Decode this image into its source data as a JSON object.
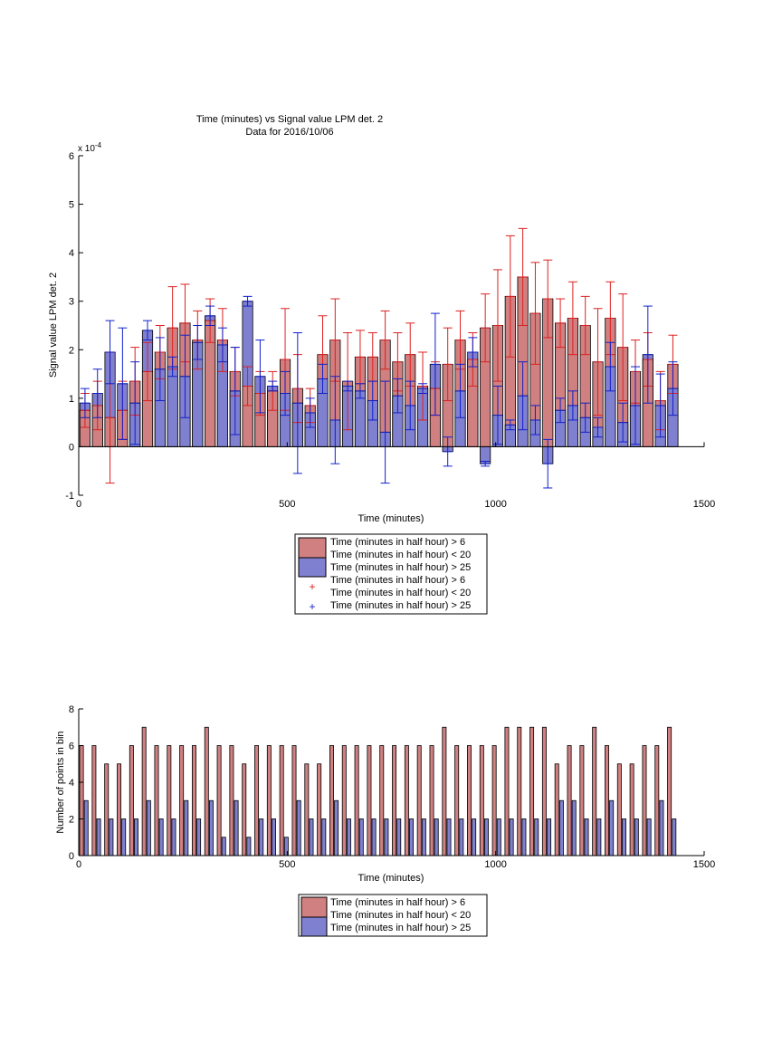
{
  "colors": {
    "red_bar": "#d08080",
    "blue_bar": "#8080d0",
    "red_err": "#dd2020",
    "blue_err": "#1020cc",
    "axis": "#000000"
  },
  "chart_data": [
    {
      "type": "bar",
      "title": "Time (minutes) vs Signal value LPM det. 2",
      "subtitle": "Data for 2016/10/06",
      "xlabel": "Time (minutes)",
      "ylabel": "Signal value LPM det. 2",
      "y_multiplier": "x 10",
      "y_multiplier_exp": "-4",
      "xlim": [
        0,
        1500
      ],
      "ylim": [
        -1,
        6
      ],
      "xticks": [
        0,
        500,
        1000,
        1500
      ],
      "yticks": [
        -1,
        0,
        1,
        2,
        3,
        4,
        5,
        6
      ],
      "x": [
        15,
        45,
        75,
        105,
        135,
        165,
        195,
        225,
        255,
        285,
        315,
        345,
        375,
        405,
        435,
        465,
        495,
        525,
        555,
        585,
        615,
        645,
        675,
        705,
        735,
        765,
        795,
        825,
        855,
        885,
        915,
        945,
        975,
        1005,
        1035,
        1065,
        1095,
        1125,
        1155,
        1185,
        1215,
        1245,
        1275,
        1305,
        1335,
        1365,
        1395,
        1425
      ],
      "series": [
        {
          "name": "Time (minutes in half hour) > 6",
          "name_line2": "Time (minutes in half hour) < 20",
          "values": [
            0.75,
            0.85,
            0.6,
            0.75,
            1.35,
            1.55,
            1.95,
            2.45,
            2.55,
            2.2,
            2.6,
            2.2,
            1.55,
            1.25,
            1.1,
            1.15,
            1.8,
            1.2,
            0.85,
            1.9,
            2.2,
            1.35,
            1.85,
            1.85,
            2.2,
            1.75,
            1.9,
            1.25,
            1.2,
            1.7,
            2.2,
            1.8,
            2.45,
            2.5,
            3.1,
            3.5,
            2.75,
            3.05,
            2.55,
            2.65,
            2.5,
            1.75,
            2.65,
            2.05,
            1.55,
            1.8,
            0.95,
            1.7
          ],
          "errors": [
            0.35,
            0.5,
            1.35,
            0.6,
            0.7,
            0.6,
            0.55,
            0.85,
            0.8,
            0.6,
            0.45,
            0.65,
            0.5,
            0.4,
            0.45,
            0.4,
            1.05,
            0.7,
            0.35,
            0.8,
            0.85,
            1.0,
            0.55,
            0.5,
            0.6,
            0.6,
            0.65,
            0.7,
            0.55,
            0.75,
            0.6,
            0.55,
            0.7,
            1.15,
            1.25,
            1.0,
            1.05,
            0.8,
            0.5,
            0.75,
            0.6,
            1.1,
            0.75,
            1.1,
            0.65,
            0.55,
            0.6,
            0.6
          ]
        },
        {
          "name": "Time (minutes in half hour) > 25",
          "values": [
            0.9,
            1.1,
            1.95,
            1.3,
            0.9,
            2.4,
            1.6,
            1.65,
            1.45,
            2.15,
            2.7,
            2.1,
            1.15,
            3.0,
            1.45,
            1.25,
            1.1,
            0.9,
            0.7,
            1.4,
            0.55,
            1.25,
            1.15,
            0.95,
            0.3,
            1.05,
            0.85,
            1.2,
            1.7,
            -0.1,
            1.15,
            1.95,
            -0.35,
            0.65,
            0.45,
            1.05,
            0.55,
            -0.35,
            0.75,
            0.85,
            0.6,
            0.4,
            1.65,
            0.5,
            0.85,
            1.9,
            0.85,
            1.2
          ],
          "errors": [
            0.3,
            0.5,
            0.65,
            1.15,
            0.85,
            0.2,
            0.65,
            0.2,
            0.85,
            0.35,
            0.2,
            0.35,
            0.9,
            0.1,
            0.75,
            0.1,
            0.45,
            1.45,
            0.3,
            0.3,
            0.9,
            0.1,
            0.15,
            0.4,
            1.05,
            0.35,
            0.5,
            0.1,
            1.05,
            0.3,
            0.55,
            0.3,
            0.05,
            0.6,
            0.1,
            0.7,
            0.3,
            0.5,
            0.25,
            0.3,
            0.3,
            0.2,
            0.5,
            0.4,
            0.8,
            1.0,
            0.65,
            0.55
          ]
        }
      ],
      "legend": {
        "placement": "below",
        "entries": [
          "Time (minutes in half hour) > 6",
          "Time (minutes in half hour) < 20",
          "Time (minutes in half hour) > 25",
          "Time (minutes in half hour) > 6",
          "Time (minutes in half hour) < 20",
          "Time (minutes in half hour) > 25"
        ]
      }
    },
    {
      "type": "bar",
      "xlabel": "Time (minutes)",
      "ylabel": "Number of points in bin",
      "xlim": [
        0,
        1500
      ],
      "ylim": [
        0,
        8
      ],
      "xticks": [
        0,
        500,
        1000,
        1500
      ],
      "yticks": [
        0,
        2,
        4,
        6,
        8
      ],
      "x": [
        15,
        45,
        75,
        105,
        135,
        165,
        195,
        225,
        255,
        285,
        315,
        345,
        375,
        405,
        435,
        465,
        495,
        525,
        555,
        585,
        615,
        645,
        675,
        705,
        735,
        765,
        795,
        825,
        855,
        885,
        915,
        945,
        975,
        1005,
        1035,
        1065,
        1095,
        1125,
        1155,
        1185,
        1215,
        1245,
        1275,
        1305,
        1335,
        1365,
        1395,
        1425
      ],
      "series": [
        {
          "name": "Time (minutes in half hour) > 6",
          "name_line2": "Time (minutes in half hour) < 20",
          "values": [
            6,
            6,
            5,
            5,
            6,
            7,
            6,
            6,
            6,
            6,
            7,
            6,
            6,
            5,
            6,
            6,
            6,
            6,
            5,
            5,
            6,
            6,
            6,
            6,
            6,
            6,
            6,
            6,
            6,
            7,
            6,
            6,
            6,
            6,
            7,
            7,
            7,
            7,
            5,
            6,
            6,
            7,
            6,
            5,
            5,
            6,
            6,
            7
          ]
        },
        {
          "name": "Time (minutes in half hour) > 25",
          "values": [
            3,
            2,
            2,
            2,
            2,
            3,
            2,
            2,
            3,
            2,
            3,
            1,
            3,
            1,
            2,
            2,
            1,
            3,
            2,
            2,
            3,
            2,
            2,
            2,
            2,
            2,
            2,
            2,
            2,
            2,
            2,
            2,
            2,
            2,
            2,
            2,
            2,
            2,
            3,
            3,
            2,
            2,
            3,
            2,
            2,
            2,
            3,
            2
          ]
        }
      ],
      "legend": {
        "placement": "below",
        "entries": [
          "Time (minutes in half hour) > 6",
          "Time (minutes in half hour) < 20",
          "Time (minutes in half hour) > 25"
        ]
      }
    }
  ]
}
